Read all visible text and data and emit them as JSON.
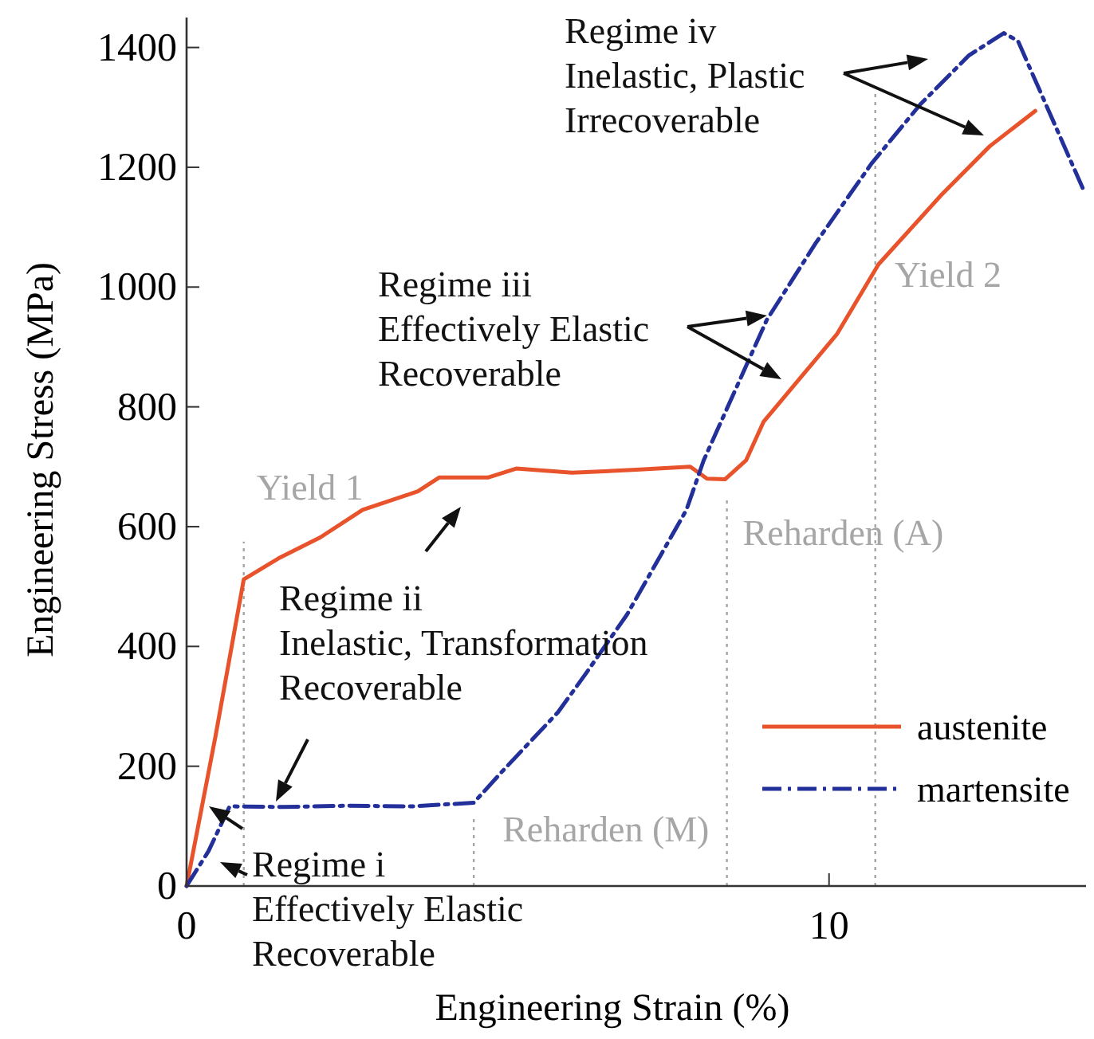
{
  "chart_data": {
    "type": "line",
    "xlabel": "Engineering Strain (%)",
    "ylabel": "Engineering Stress (MPa)",
    "xlim": [
      0,
      14
    ],
    "xticks": [
      0,
      10
    ],
    "ylim": [
      0,
      1450
    ],
    "yticks": [
      0,
      200,
      400,
      600,
      800,
      1000,
      1200,
      1400
    ],
    "legend": "bottom right",
    "series": [
      {
        "name": "austenite",
        "color": "#e8532b",
        "line_style": "solid",
        "x": [
          0,
          0.45,
          0.89,
          1.43,
          2.08,
          2.74,
          3.6,
          3.93,
          4.69,
          5.13,
          6.0,
          7.0,
          7.84,
          8.1,
          8.38,
          8.71,
          8.98,
          10.12,
          10.77,
          11.75,
          12.5,
          13.21
        ],
        "values": [
          0,
          250,
          512,
          547,
          582,
          628,
          659,
          682,
          682,
          697,
          690,
          695,
          700,
          680,
          679,
          711,
          775,
          921,
          1038,
          1154,
          1235,
          1294
        ]
      },
      {
        "name": "martensite",
        "color": "#23309a",
        "line_style": "dashed",
        "x": [
          0,
          0.34,
          0.67,
          1.5,
          2.5,
          3.5,
          4.47,
          4.91,
          5.78,
          6.21,
          6.86,
          7.78,
          8.05,
          9.03,
          9.79,
          10.66,
          11.42,
          12.18,
          12.72,
          12.94,
          13.97
        ],
        "values": [
          0,
          58,
          133,
          132,
          134,
          133,
          139,
          191,
          290,
          354,
          454,
          628,
          711,
          945,
          1073,
          1206,
          1305,
          1387,
          1424,
          1411,
          1160
        ]
      }
    ],
    "ref_lines": [
      {
        "axis": "x",
        "value": 0.89,
        "label": "Yield 1",
        "color": "#a6a6a6",
        "line_style": "dotted"
      },
      {
        "axis": "x",
        "value": 4.47,
        "label": "Reharden (M)",
        "color": "#a6a6a6",
        "line_style": "dotted"
      },
      {
        "axis": "x",
        "value": 8.41,
        "label": "Reharden (A)",
        "color": "#a6a6a6",
        "line_style": "dotted"
      },
      {
        "axis": "x",
        "value": 10.72,
        "label": "Yield 2",
        "color": "#a6a6a6",
        "line_style": "dotted"
      }
    ],
    "annotations": [
      "Regime i\nEffectively Elastic\nRecoverable",
      "Regime ii\nInelastic, Transformation\nRecoverable",
      "Regime iii\nEffectively Elastic\nRecoverable",
      "Regime iv\nInelastic, Plastic\nIrrecoverable"
    ]
  }
}
